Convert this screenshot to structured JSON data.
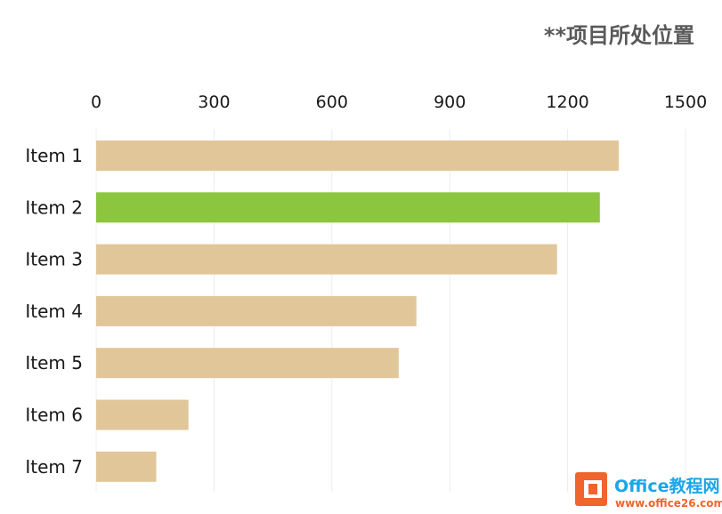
{
  "chart_data": {
    "type": "bar",
    "orientation": "horizontal",
    "title": "**项目所处位置",
    "categories": [
      "Item 1",
      "Item 2",
      "Item 3",
      "Item 4",
      "Item 5",
      "Item 6",
      "Item 7"
    ],
    "values": [
      1330,
      1282,
      1173,
      815,
      770,
      235,
      153
    ],
    "highlight_index": 1,
    "xlim": [
      0,
      1500
    ],
    "xticks": [
      0,
      300,
      600,
      900,
      1200,
      1500
    ],
    "axis_position": "top",
    "grid": true,
    "colors": {
      "bar": "#e1c69a",
      "highlight": "#8cc63f",
      "grid": "#ececec",
      "title": "#595959"
    }
  },
  "watermark": {
    "text_main": "Office教程网",
    "text_sub": "www.office26.com",
    "colors": {
      "orange": "#f0642d",
      "blue": "#1aa6e8"
    }
  }
}
